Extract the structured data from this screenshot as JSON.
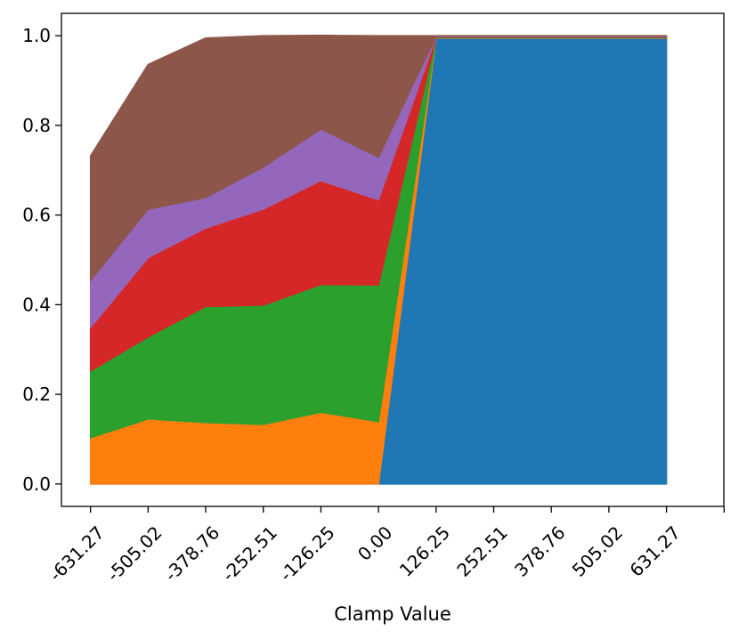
{
  "chart_data": {
    "type": "area",
    "stacked": true,
    "title": "",
    "xlabel": "Clamp Value",
    "ylabel": "",
    "x": [
      -631.27,
      -505.02,
      -378.76,
      -252.51,
      -126.25,
      0.0,
      126.25,
      252.51,
      378.76,
      505.02,
      631.27
    ],
    "x_tick_labels": [
      "-631.27",
      "-505.02",
      "-378.76",
      "-252.51",
      "-126.25",
      "0.00",
      "126.25",
      "252.51",
      "378.76",
      "505.02",
      "631.27"
    ],
    "y_ticks": [
      "0.0",
      "0.2",
      "0.4",
      "0.6",
      "0.8",
      "1.0"
    ],
    "xlim": [
      -695,
      757
    ],
    "ylim": [
      -0.05,
      1.05
    ],
    "grid": false,
    "series": [
      {
        "color": "#1f77b4",
        "values": [
          0.0,
          0.0,
          0.0,
          0.0,
          0.0,
          0.0,
          0.995,
          0.995,
          0.995,
          0.995,
          0.995
        ]
      },
      {
        "color": "#ff7f0e",
        "values": [
          0.103,
          0.145,
          0.137,
          0.133,
          0.16,
          0.139,
          0.001,
          0.001,
          0.001,
          0.001,
          0.001
        ]
      },
      {
        "color": "#2ca02c",
        "values": [
          0.149,
          0.183,
          0.259,
          0.266,
          0.285,
          0.305,
          0.001,
          0.001,
          0.001,
          0.001,
          0.001
        ]
      },
      {
        "color": "#d62728",
        "values": [
          0.097,
          0.177,
          0.175,
          0.214,
          0.232,
          0.19,
          0.001,
          0.001,
          0.001,
          0.001,
          0.001
        ]
      },
      {
        "color": "#9467bd",
        "values": [
          0.105,
          0.108,
          0.068,
          0.094,
          0.115,
          0.095,
          0.001,
          0.001,
          0.001,
          0.001,
          0.001
        ]
      },
      {
        "color": "#8c564b",
        "values": [
          0.278,
          0.323,
          0.356,
          0.293,
          0.209,
          0.271,
          0.001,
          0.001,
          0.001,
          0.001,
          0.001
        ]
      }
    ]
  }
}
